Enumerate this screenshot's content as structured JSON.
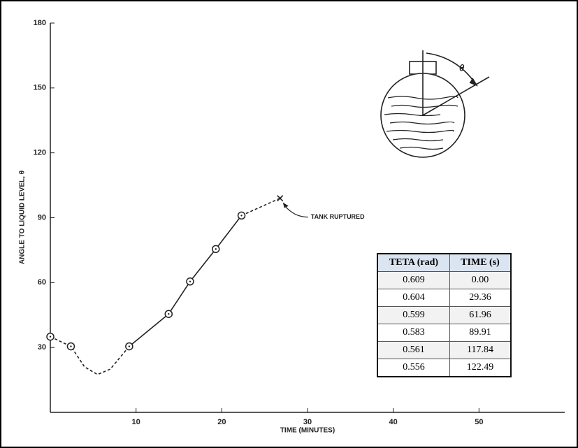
{
  "chart_data": {
    "type": "line",
    "x_label": "TIME (MINUTES)",
    "y_label": "ANGLE TO LIQUID LEVEL, θ",
    "xlim": [
      0,
      60
    ],
    "ylim": [
      0,
      180
    ],
    "xticks": [
      10,
      20,
      30,
      40,
      50
    ],
    "yticks": [
      30,
      60,
      90,
      120,
      150,
      180
    ],
    "color": "#222",
    "series": [
      {
        "line_style": "dashed",
        "marker": "none",
        "x": [
          0,
          2.4,
          4,
          5.5,
          7,
          9.2
        ],
        "values": [
          35,
          30.5,
          21,
          17.5,
          20,
          30.5
        ]
      },
      {
        "line_style": "solid",
        "marker": "none",
        "x": [
          9.2,
          13.8,
          16.3,
          19.3,
          22.3
        ],
        "values": [
          30.5,
          45.5,
          60.5,
          75.5,
          91
        ]
      },
      {
        "line_style": "dashed",
        "marker": "none",
        "x": [
          22.3,
          26.8
        ],
        "values": [
          91,
          99
        ]
      },
      {
        "line_style": "none",
        "marker": "circle",
        "x": [
          0,
          2.4,
          9.2,
          13.8,
          16.3,
          19.3,
          22.3
        ],
        "values": [
          35,
          30.5,
          30.5,
          45.5,
          60.5,
          75.5,
          91
        ]
      },
      {
        "line_style": "none",
        "marker": "x",
        "x": [
          26.8
        ],
        "values": [
          99
        ]
      }
    ],
    "annotations": [
      {
        "text": "TANK RUPTURED",
        "x": 26.8,
        "y": 99
      }
    ]
  },
  "diagram": {
    "angle_label": "θ"
  },
  "table": {
    "columns": [
      "TETA (rad)",
      "TIME (s)"
    ],
    "rows": [
      [
        "0.609",
        "0.00"
      ],
      [
        "0.604",
        "29.36"
      ],
      [
        "0.599",
        "61.96"
      ],
      [
        "0.583",
        "89.91"
      ],
      [
        "0.561",
        "117.84"
      ],
      [
        "0.556",
        "122.49"
      ]
    ]
  }
}
